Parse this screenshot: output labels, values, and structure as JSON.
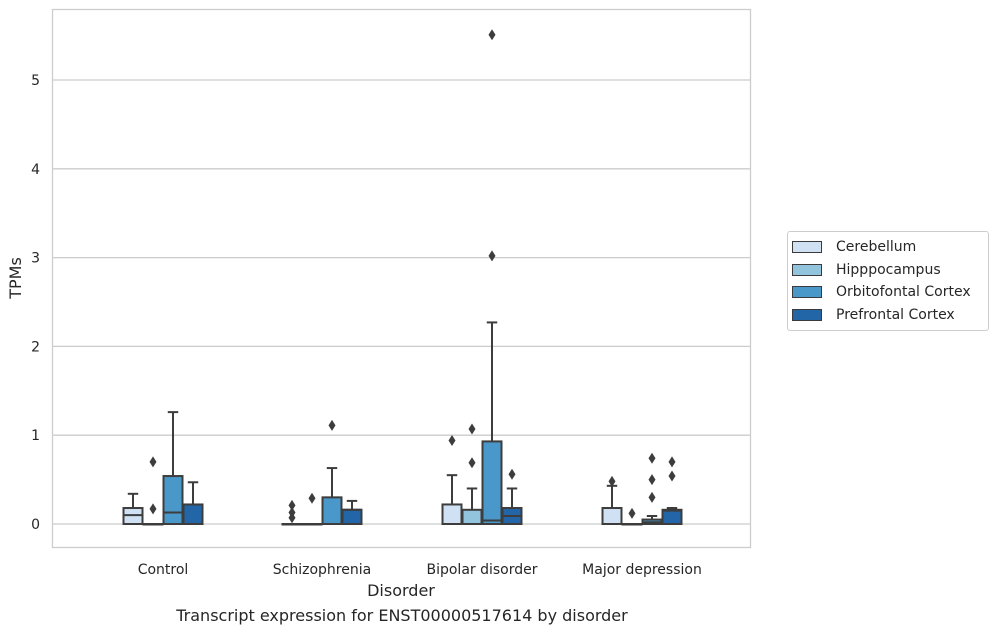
{
  "chart_data": {
    "type": "box",
    "xlabel": "Disorder",
    "ylabel": "TPMs",
    "ylim": [
      -0.27,
      5.9
    ],
    "yticks": [
      0,
      1,
      2,
      3,
      4,
      5
    ],
    "grid": "horizontal",
    "legend_position": "right",
    "categories": [
      "Control",
      "Schizophrenia",
      "Bipolar disorder",
      "Major depression"
    ],
    "series": [
      {
        "name": "Cerebellum",
        "color": "#cfe1f2",
        "boxes": [
          {
            "q1": 0,
            "median": 0.1,
            "q3": 0.18,
            "whislo": 0,
            "whishi": 0.34,
            "fliers": []
          },
          {
            "q1": 0,
            "median": 0,
            "q3": 0,
            "whislo": 0,
            "whishi": 0,
            "fliers": [
              0.21,
              0.13,
              0.07
            ]
          },
          {
            "q1": 0,
            "median": 0,
            "q3": 0.22,
            "whislo": 0,
            "whishi": 0.55,
            "fliers": [
              0.94
            ]
          },
          {
            "q1": 0,
            "median": 0,
            "q3": 0.18,
            "whislo": 0,
            "whishi": 0.43,
            "fliers": [
              0.48
            ]
          }
        ]
      },
      {
        "name": "Hipppocampus",
        "color": "#93c4de",
        "boxes": [
          {
            "q1": 0,
            "median": 0,
            "q3": 0,
            "whislo": 0,
            "whishi": 0,
            "fliers": [
              0.7,
              0.17
            ]
          },
          {
            "q1": 0,
            "median": 0,
            "q3": 0,
            "whislo": 0,
            "whishi": 0,
            "fliers": [
              0.29
            ]
          },
          {
            "q1": 0,
            "median": 0,
            "q3": 0.16,
            "whislo": 0,
            "whishi": 0.4,
            "fliers": [
              1.07,
              0.69
            ]
          },
          {
            "q1": 0,
            "median": 0,
            "q3": 0,
            "whislo": 0,
            "whishi": 0,
            "fliers": [
              0.12
            ]
          }
        ]
      },
      {
        "name": "Orbitofontal Cortex",
        "color": "#4a98c9",
        "boxes": [
          {
            "q1": 0,
            "median": 0.13,
            "q3": 0.54,
            "whislo": 0,
            "whishi": 1.26,
            "fliers": []
          },
          {
            "q1": 0,
            "median": 0,
            "q3": 0.3,
            "whislo": 0,
            "whishi": 0.63,
            "fliers": [
              1.11
            ]
          },
          {
            "q1": 0,
            "median": 0.04,
            "q3": 0.93,
            "whislo": 0,
            "whishi": 2.27,
            "fliers": [
              5.51,
              3.02
            ]
          },
          {
            "q1": 0,
            "median": 0.02,
            "q3": 0.05,
            "whislo": 0,
            "whishi": 0.09,
            "fliers": [
              0.74,
              0.5,
              0.3
            ]
          }
        ]
      },
      {
        "name": "Prefrontal Cortex",
        "color": "#2366a8",
        "boxes": [
          {
            "q1": 0,
            "median": 0.22,
            "q3": 0.22,
            "whislo": 0,
            "whishi": 0.47,
            "fliers": []
          },
          {
            "q1": 0,
            "median": 0.16,
            "q3": 0.16,
            "whislo": 0,
            "whishi": 0.26,
            "fliers": []
          },
          {
            "q1": 0,
            "median": 0.09,
            "q3": 0.18,
            "whislo": 0,
            "whishi": 0.4,
            "fliers": [
              0.56
            ]
          },
          {
            "q1": 0,
            "median": 0.15,
            "q3": 0.16,
            "whislo": 0,
            "whishi": 0.18,
            "fliers": [
              0.7,
              0.54
            ]
          }
        ]
      }
    ]
  },
  "caption": "Transcript expression for ENST00000517614 by disorder"
}
